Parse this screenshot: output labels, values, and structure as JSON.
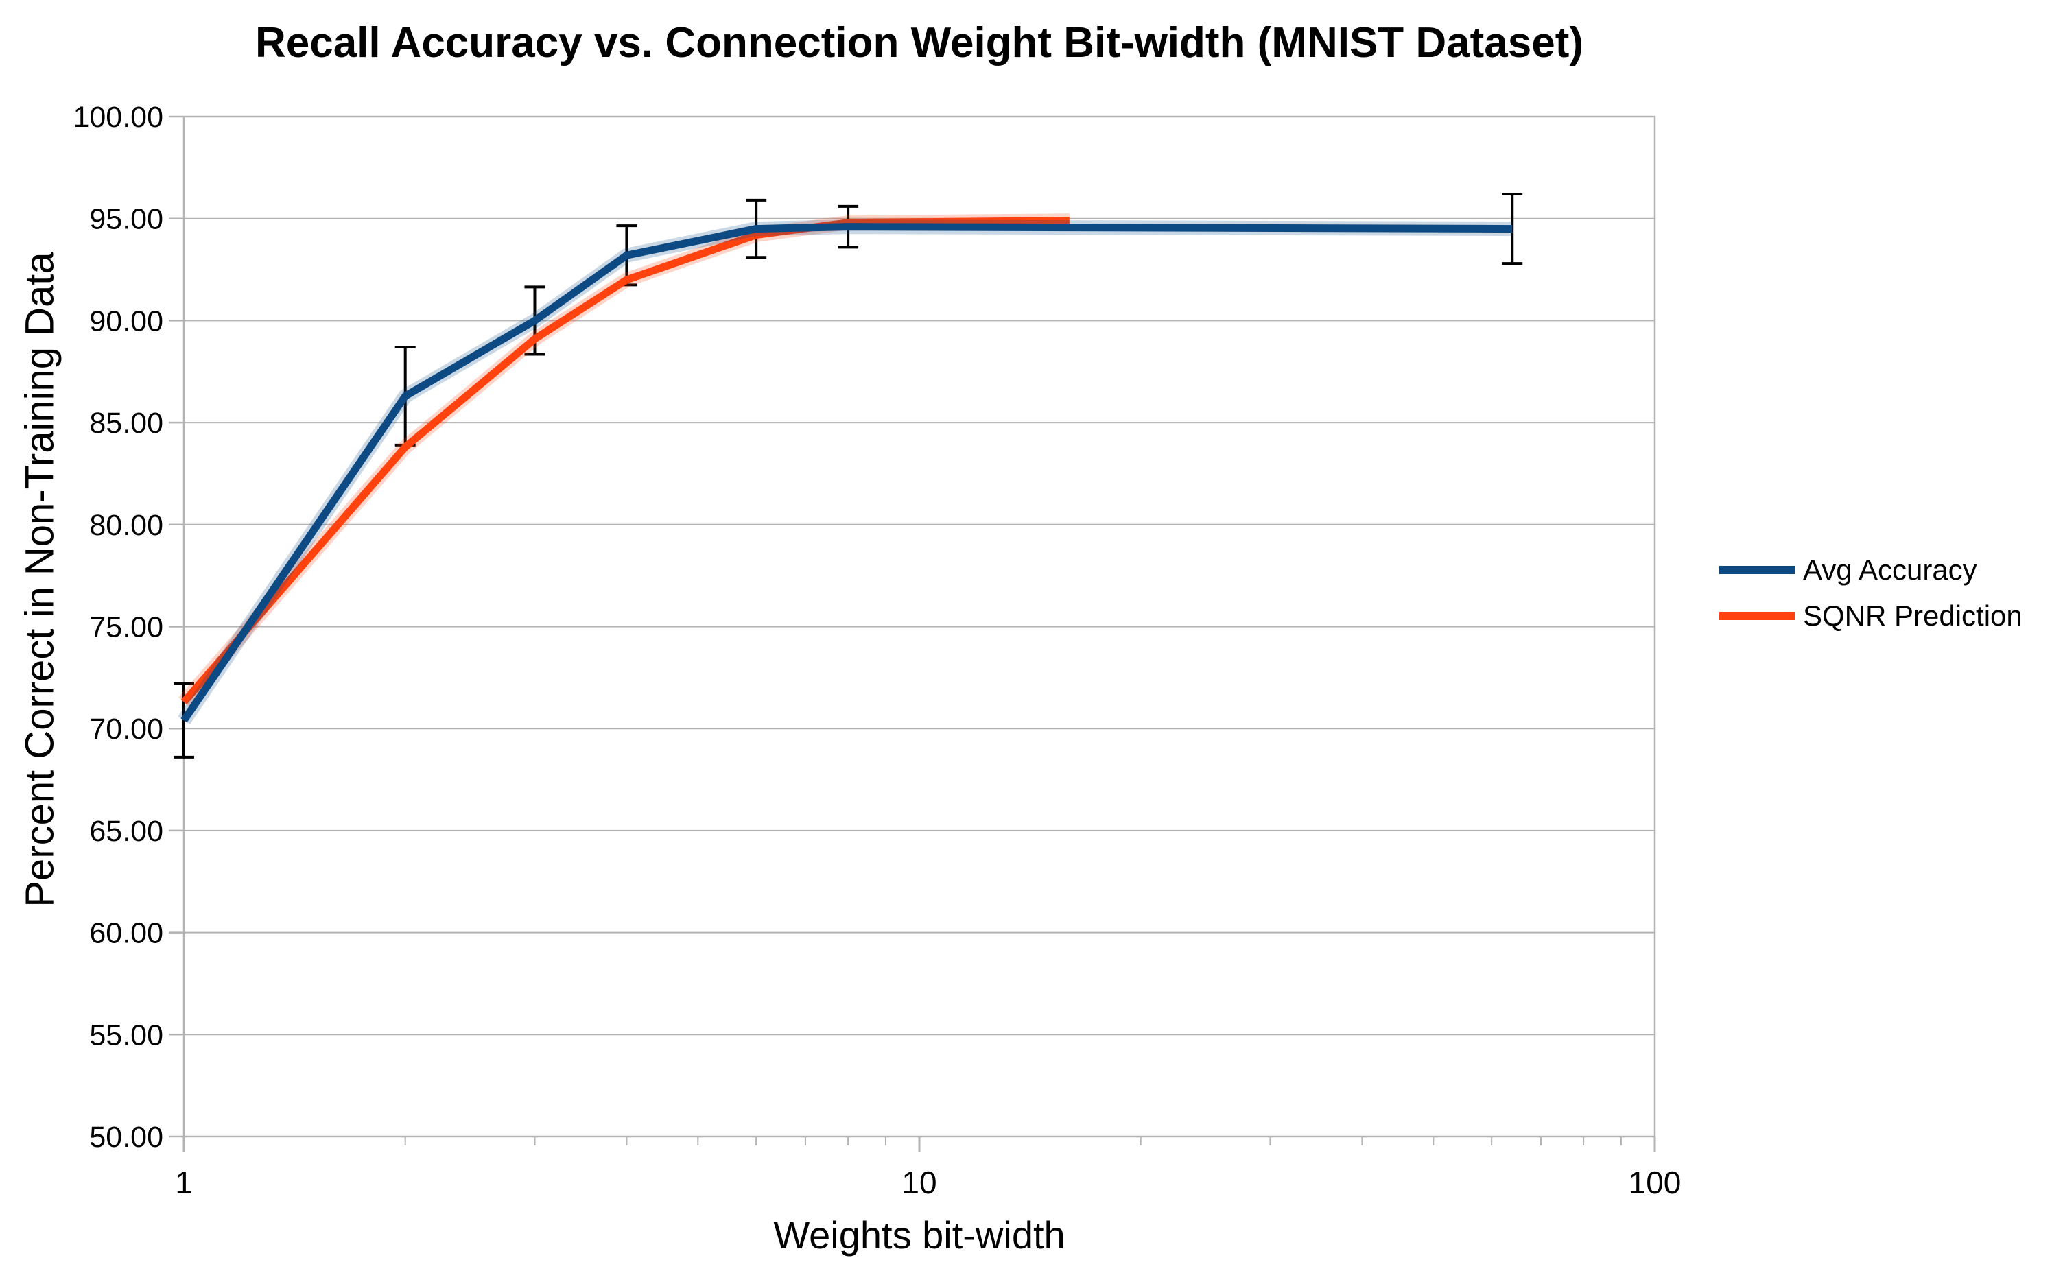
{
  "chart_data": {
    "type": "line",
    "title": "Recall Accuracy vs. Connection Weight Bit-width (MNIST Dataset)",
    "xlabel": "Weights bit-width",
    "ylabel": "Percent Correct in Non-Training Data",
    "x_scale": "log",
    "xlim": [
      1,
      100
    ],
    "ylim": [
      50,
      100
    ],
    "grid": "horizontal-major",
    "legend_position": "right-middle",
    "grid_color": "#b3b3b3",
    "axis_color": "#b3b3b3",
    "text_color": "#000000",
    "error_bar_color": "#000000",
    "x_tick_values": [
      1,
      10,
      100
    ],
    "x_tick_labels": [
      "1",
      "10",
      "100"
    ],
    "x_minor_tick_values": [
      2,
      3,
      4,
      5,
      6,
      7,
      8,
      9,
      20,
      30,
      40,
      50,
      60,
      70,
      80,
      90
    ],
    "y_tick_values": [
      50,
      55,
      60,
      65,
      70,
      75,
      80,
      85,
      90,
      95,
      100
    ],
    "y_tick_labels": [
      "50.00",
      "55.00",
      "60.00",
      "65.00",
      "70.00",
      "75.00",
      "80.00",
      "85.00",
      "90.00",
      "95.00",
      "100.00"
    ],
    "series": [
      {
        "name": "Avg Accuracy",
        "color": "#0d4a84",
        "x": [
          1,
          2,
          3,
          4,
          6,
          8,
          64
        ],
        "y": [
          70.4,
          86.3,
          90.0,
          93.2,
          94.5,
          94.6,
          94.5
        ],
        "error": [
          1.8,
          2.4,
          1.65,
          1.45,
          1.4,
          1.0,
          1.7
        ]
      },
      {
        "name": "SQNR Prediction",
        "color": "#ff420e",
        "x": [
          1,
          2,
          3,
          4,
          6,
          8,
          16
        ],
        "y": [
          71.3,
          83.8,
          89.1,
          92.0,
          94.2,
          94.8,
          94.9
        ]
      }
    ]
  }
}
